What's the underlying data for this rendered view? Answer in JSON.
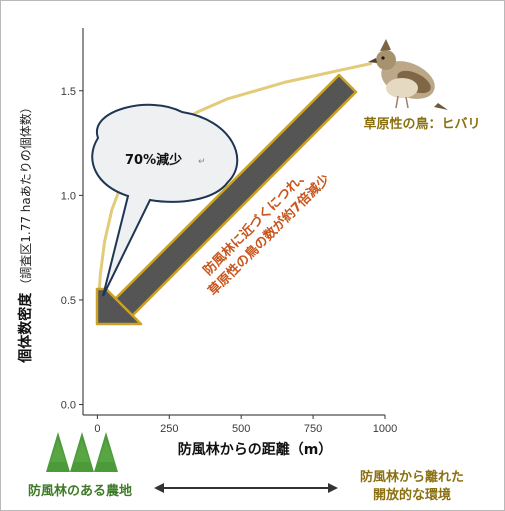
{
  "chart_data": {
    "type": "line",
    "xlabel": "防風林からの距離（m）",
    "ylabel_main": "個体数密度",
    "ylabel_sub": "（調査区1.77 haあたりの個体数）",
    "xlim": [
      -50,
      1000
    ],
    "ylim": [
      -0.05,
      1.8
    ],
    "x_ticks": [
      0,
      250,
      500,
      750,
      1000
    ],
    "y_ticks": [
      0.0,
      0.5,
      1.0,
      1.5
    ],
    "x_tick_labels": [
      "0",
      "250",
      "500",
      "750",
      "1000"
    ],
    "y_tick_labels": [
      "0.0",
      "0.5",
      "1.0",
      "1.5"
    ],
    "series": [
      {
        "color": "#e3cb7a",
        "x": [
          0,
          10,
          25,
          50,
          80,
          120,
          180,
          260,
          350,
          450,
          550,
          650,
          750,
          850,
          950
        ],
        "y": [
          0.42,
          0.62,
          0.78,
          0.93,
          1.04,
          1.14,
          1.24,
          1.33,
          1.4,
          1.46,
          1.5,
          1.54,
          1.57,
          1.6,
          1.63
        ]
      }
    ],
    "grid": false
  },
  "annotations": {
    "bubble_text": "70%減少",
    "bubble_mark": "↵",
    "arrow_text_line1": "防風林に近づくにつれ、",
    "arrow_text_line2": "草原性の鳥の数が約7倍減少",
    "bird_label": "草原性の鳥：ヒバリ",
    "near_label": "防風林のある農地",
    "far_label_line1": "防風林から離れた",
    "far_label_line2": "開放的な環境"
  },
  "colors": {
    "curve": "#e3cb7a",
    "arrow_fill": "#555555",
    "arrow_outline": "#c9a227",
    "orange_text": "#c8561c",
    "olive_text": "#8a7010",
    "green_text": "#3e7a27",
    "tree": "#4c9a3a",
    "bubble_fill": "#eef0f1",
    "bubble_stroke": "#1f3554"
  }
}
